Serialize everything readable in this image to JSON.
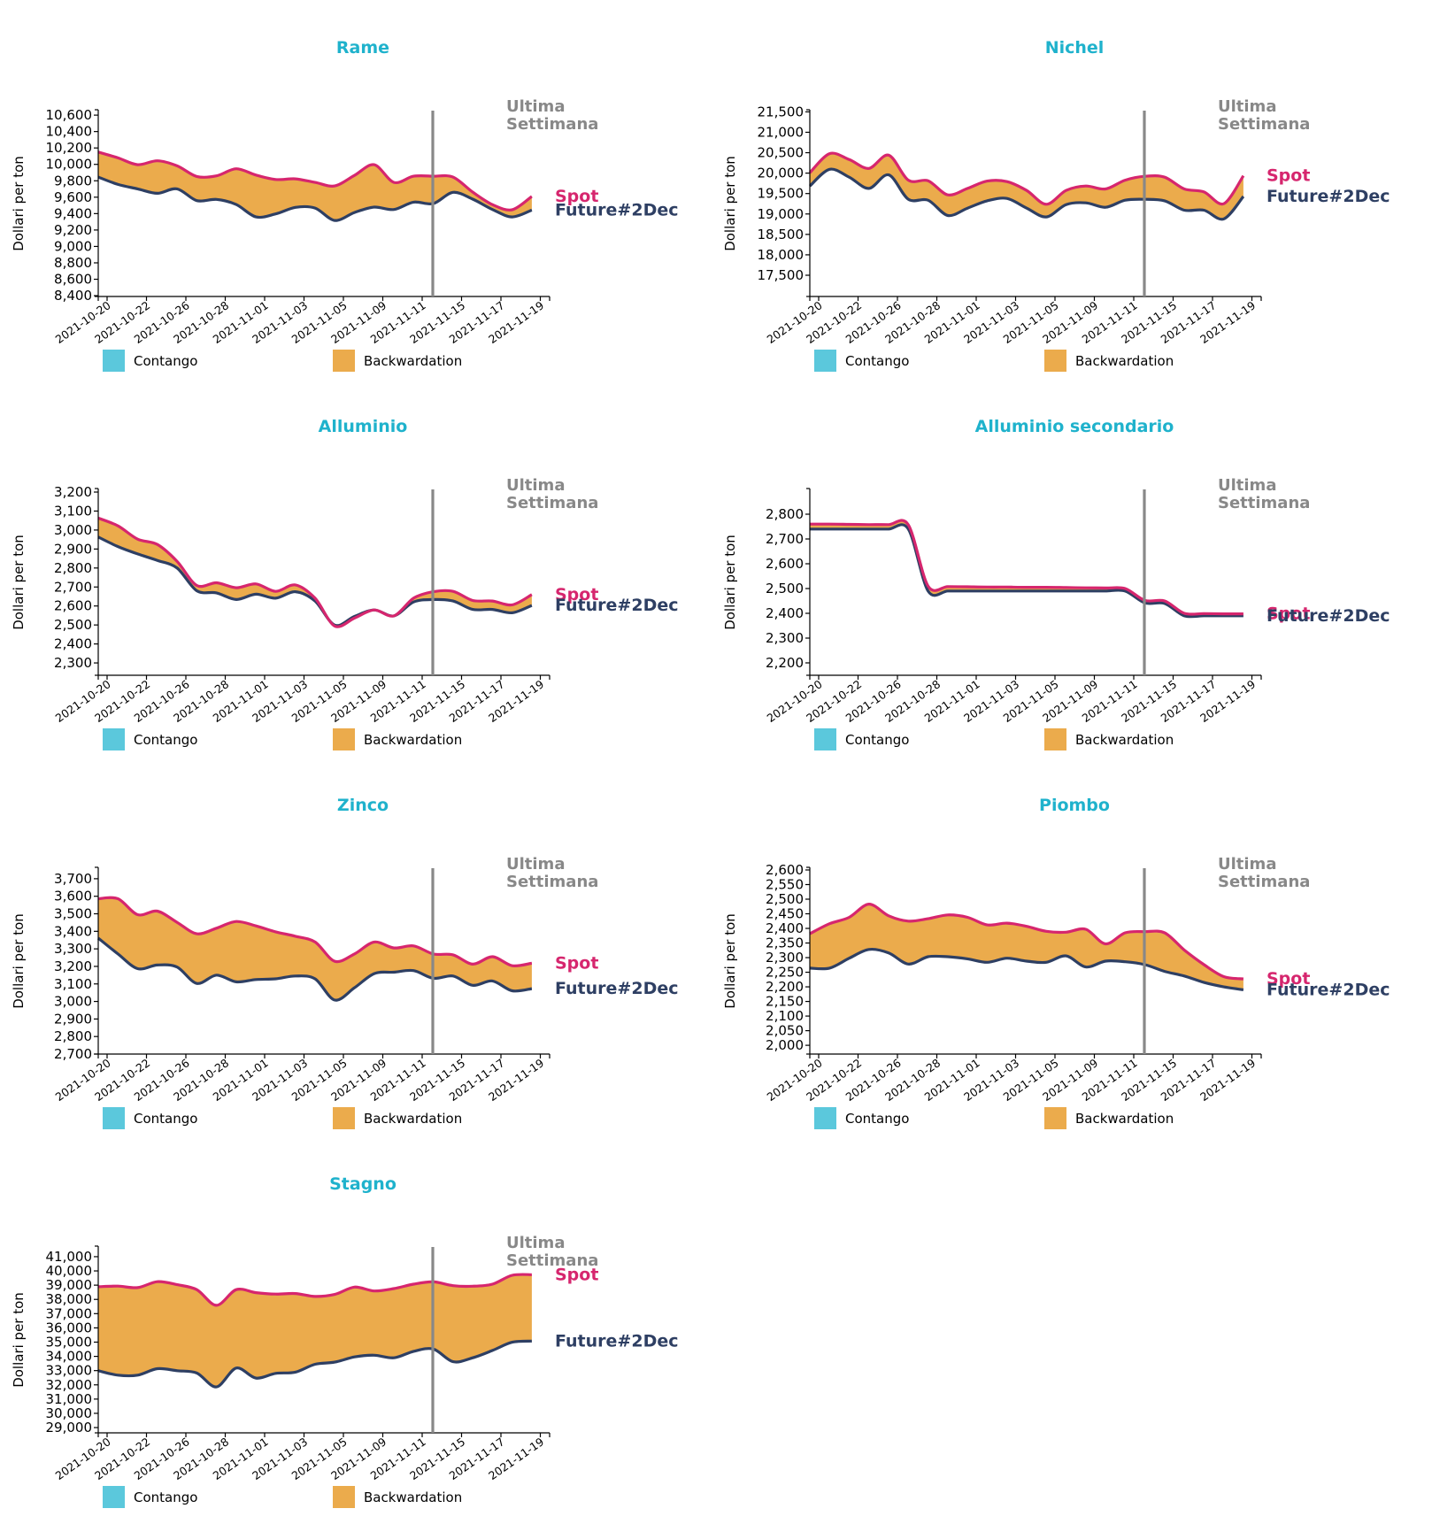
{
  "colors": {
    "title": "#1fb2cc",
    "spot": "#d6266e",
    "future": "#2e3f63",
    "contango": "#5bc8dc",
    "backwardation": "#ebab4c",
    "last_week_line": "#888888",
    "last_week_text": "#888888"
  },
  "common": {
    "ylabel": "Dollari per ton",
    "last_week_label_1": "Ultima",
    "last_week_label_2": "Settimana",
    "spot_label": "Spot",
    "future_label": "Future#2Dec",
    "legend": [
      {
        "label": "Contango",
        "color_key": "contango"
      },
      {
        "label": "Backwardation",
        "color_key": "backwardation"
      }
    ],
    "x_tick_labels": [
      "2021-10-20",
      "2021-10-22",
      "2021-10-26",
      "2021-10-28",
      "2021-11-01",
      "2021-11-03",
      "2021-11-05",
      "2021-11-09",
      "2021-11-11",
      "2021-11-15",
      "2021-11-17",
      "2021-11-19"
    ],
    "last_week_marker_after": "2021-11-11"
  },
  "chart_data": [
    {
      "type": "area",
      "title": "Rame",
      "xlabel": "",
      "ylabel": "Dollari per ton",
      "x": [
        "2021-10-19",
        "2021-10-20",
        "2021-10-21",
        "2021-10-22",
        "2021-10-25",
        "2021-10-26",
        "2021-10-27",
        "2021-10-28",
        "2021-10-29",
        "2021-11-01",
        "2021-11-02",
        "2021-11-03",
        "2021-11-04",
        "2021-11-05",
        "2021-11-08",
        "2021-11-09",
        "2021-11-10",
        "2021-11-11",
        "2021-11-12",
        "2021-11-15",
        "2021-11-16",
        "2021-11-17",
        "2021-11-18"
      ],
      "ylim": [
        8390,
        10655
      ],
      "yticks": [
        8400,
        8600,
        8800,
        9000,
        9200,
        9400,
        9600,
        9800,
        10000,
        10200,
        10400,
        10600
      ],
      "series": [
        {
          "name": "Spot",
          "values": [
            10150,
            10079,
            9996,
            10043,
            9982,
            9853,
            9860,
            9946,
            9870,
            9816,
            9823,
            9780,
            9737,
            9866,
            9996,
            9780,
            9856,
            9856,
            9845,
            9662,
            9510,
            9447,
            9610
          ]
        },
        {
          "name": "Future#2Dec",
          "values": [
            9845,
            9756,
            9702,
            9648,
            9702,
            9558,
            9573,
            9511,
            9360,
            9396,
            9476,
            9468,
            9317,
            9414,
            9479,
            9450,
            9540,
            9522,
            9659,
            9576,
            9450,
            9360,
            9443
          ]
        }
      ],
      "legend": [
        "Contango",
        "Backwardation"
      ],
      "annotations": [
        "Ultima Settimana"
      ]
    },
    {
      "type": "area",
      "title": "Nichel",
      "xlabel": "",
      "ylabel": "Dollari per ton",
      "x": [
        "2021-10-19",
        "2021-10-20",
        "2021-10-21",
        "2021-10-22",
        "2021-10-25",
        "2021-10-26",
        "2021-10-27",
        "2021-10-28",
        "2021-10-29",
        "2021-11-01",
        "2021-11-02",
        "2021-11-03",
        "2021-11-04",
        "2021-11-05",
        "2021-11-08",
        "2021-11-09",
        "2021-11-10",
        "2021-11-11",
        "2021-11-12",
        "2021-11-15",
        "2021-11-16",
        "2021-11-17",
        "2021-11-18"
      ],
      "ylim": [
        16980,
        21530
      ],
      "yticks": [
        17500,
        18000,
        18500,
        19000,
        19500,
        20000,
        20500,
        21000,
        21500
      ],
      "series": [
        {
          "name": "Spot",
          "values": [
            20008,
            20477,
            20332,
            20116,
            20440,
            19828,
            19813,
            19468,
            19626,
            19806,
            19792,
            19576,
            19237,
            19576,
            19684,
            19612,
            19828,
            19922,
            19900,
            19612,
            19539,
            19251,
            19935
          ]
        },
        {
          "name": "Future#2Dec",
          "values": [
            19684,
            20094,
            19900,
            19626,
            19958,
            19360,
            19337,
            18963,
            19143,
            19323,
            19381,
            19143,
            18927,
            19230,
            19273,
            19165,
            19337,
            19360,
            19323,
            19093,
            19093,
            18877,
            19431
          ]
        }
      ],
      "legend": [
        "Contango",
        "Backwardation"
      ],
      "annotations": [
        "Ultima Settimana"
      ]
    },
    {
      "type": "area",
      "title": "Alluminio",
      "xlabel": "",
      "ylabel": "Dollari per ton",
      "x": [
        "2021-10-19",
        "2021-10-20",
        "2021-10-21",
        "2021-10-22",
        "2021-10-25",
        "2021-10-26",
        "2021-10-27",
        "2021-10-28",
        "2021-10-29",
        "2021-11-01",
        "2021-11-02",
        "2021-11-03",
        "2021-11-04",
        "2021-11-05",
        "2021-11-08",
        "2021-11-09",
        "2021-11-10",
        "2021-11-11",
        "2021-11-12",
        "2021-11-15",
        "2021-11-16",
        "2021-11-17",
        "2021-11-18"
      ],
      "ylim": [
        2235,
        3214
      ],
      "yticks": [
        2300,
        2400,
        2500,
        2600,
        2700,
        2800,
        2900,
        3000,
        3100,
        3200
      ],
      "series": [
        {
          "name": "Spot",
          "values": [
            3063,
            3022,
            2952,
            2924,
            2835,
            2708,
            2722,
            2696,
            2716,
            2677,
            2711,
            2641,
            2494,
            2536,
            2579,
            2548,
            2641,
            2675,
            2677,
            2629,
            2626,
            2606,
            2660
          ]
        },
        {
          "name": "Future#2Dec",
          "values": [
            2963,
            2913,
            2874,
            2840,
            2800,
            2680,
            2669,
            2634,
            2662,
            2641,
            2675,
            2626,
            2499,
            2545,
            2579,
            2548,
            2621,
            2634,
            2626,
            2582,
            2582,
            2564,
            2603
          ]
        }
      ],
      "legend": [
        "Contango",
        "Backwardation"
      ],
      "annotations": [
        "Ultima Settimana"
      ]
    },
    {
      "type": "area",
      "title": "Alluminio secondario",
      "xlabel": "",
      "ylabel": "Dollari per ton",
      "x": [
        "2021-10-19",
        "2021-10-20",
        "2021-10-21",
        "2021-10-22",
        "2021-10-25",
        "2021-10-26",
        "2021-10-27",
        "2021-10-28",
        "2021-10-29",
        "2021-11-01",
        "2021-11-02",
        "2021-11-03",
        "2021-11-04",
        "2021-11-05",
        "2021-11-08",
        "2021-11-09",
        "2021-11-10",
        "2021-11-11",
        "2021-11-12",
        "2021-11-15",
        "2021-11-16",
        "2021-11-17",
        "2021-11-18"
      ],
      "ylim": [
        2150,
        2900
      ],
      "yticks": [
        2200,
        2300,
        2400,
        2500,
        2600,
        2700,
        2800
      ],
      "series": [
        {
          "name": "Spot",
          "values": [
            2760,
            2760,
            2759,
            2758,
            2758,
            2757,
            2510,
            2508,
            2507,
            2506,
            2506,
            2505,
            2505,
            2504,
            2503,
            2502,
            2500,
            2452,
            2450,
            2400,
            2399,
            2398,
            2398
          ]
        },
        {
          "name": "Future#2Dec",
          "values": [
            2740,
            2740,
            2740,
            2740,
            2740,
            2740,
            2490,
            2490,
            2490,
            2490,
            2490,
            2490,
            2490,
            2490,
            2490,
            2490,
            2490,
            2442,
            2440,
            2390,
            2390,
            2390,
            2390
          ]
        }
      ],
      "legend": [
        "Contango",
        "Backwardation"
      ],
      "annotations": [
        "Ultima Settimana"
      ]
    },
    {
      "type": "area",
      "title": "Zinco",
      "xlabel": "",
      "ylabel": "Dollari per ton",
      "x": [
        "2021-10-19",
        "2021-10-20",
        "2021-10-21",
        "2021-10-22",
        "2021-10-25",
        "2021-10-26",
        "2021-10-27",
        "2021-10-28",
        "2021-10-29",
        "2021-11-01",
        "2021-11-02",
        "2021-11-03",
        "2021-11-04",
        "2021-11-05",
        "2021-11-08",
        "2021-11-09",
        "2021-11-10",
        "2021-11-11",
        "2021-11-12",
        "2021-11-15",
        "2021-11-16",
        "2021-11-17",
        "2021-11-18"
      ],
      "ylim": [
        2700,
        3760
      ],
      "yticks": [
        2700,
        2800,
        2900,
        3000,
        3100,
        3200,
        3300,
        3400,
        3500,
        3600,
        3700
      ],
      "series": [
        {
          "name": "Spot",
          "values": [
            3586,
            3586,
            3495,
            3515,
            3451,
            3386,
            3418,
            3456,
            3431,
            3397,
            3372,
            3339,
            3229,
            3271,
            3339,
            3305,
            3317,
            3271,
            3266,
            3213,
            3255,
            3204,
            3218
          ]
        },
        {
          "name": "Future#2Dec",
          "values": [
            3361,
            3271,
            3187,
            3208,
            3196,
            3103,
            3150,
            3112,
            3125,
            3129,
            3145,
            3129,
            3008,
            3078,
            3159,
            3167,
            3176,
            3132,
            3145,
            3092,
            3117,
            3061,
            3073
          ]
        }
      ],
      "legend": [
        "Contango",
        "Backwardation"
      ],
      "annotations": [
        "Ultima Settimana"
      ]
    },
    {
      "type": "area",
      "title": "Piombo",
      "xlabel": "",
      "ylabel": "Dollari per ton",
      "x": [
        "2021-10-19",
        "2021-10-20",
        "2021-10-21",
        "2021-10-22",
        "2021-10-25",
        "2021-10-26",
        "2021-10-27",
        "2021-10-28",
        "2021-10-29",
        "2021-11-01",
        "2021-11-02",
        "2021-11-03",
        "2021-11-04",
        "2021-11-05",
        "2021-11-08",
        "2021-11-09",
        "2021-11-10",
        "2021-11-11",
        "2021-11-12",
        "2021-11-15",
        "2021-11-16",
        "2021-11-17",
        "2021-11-18"
      ],
      "ylim": [
        1970,
        2606
      ],
      "yticks": [
        2000,
        2050,
        2100,
        2150,
        2200,
        2250,
        2300,
        2350,
        2400,
        2450,
        2500,
        2550,
        2600
      ],
      "series": [
        {
          "name": "Spot",
          "values": [
            2382,
            2416,
            2438,
            2483,
            2443,
            2425,
            2433,
            2446,
            2438,
            2412,
            2418,
            2407,
            2390,
            2387,
            2397,
            2347,
            2385,
            2389,
            2385,
            2326,
            2276,
            2235,
            2227
          ]
        },
        {
          "name": "Future#2Dec",
          "values": [
            2264,
            2264,
            2298,
            2328,
            2316,
            2278,
            2303,
            2303,
            2296,
            2284,
            2298,
            2288,
            2284,
            2306,
            2268,
            2288,
            2286,
            2276,
            2253,
            2237,
            2215,
            2200,
            2190
          ]
        }
      ],
      "legend": [
        "Contango",
        "Backwardation"
      ],
      "annotations": [
        "Ultima Settimana"
      ]
    },
    {
      "type": "area",
      "title": "Stagno",
      "xlabel": "",
      "ylabel": "Dollari per ton",
      "x": [
        "2021-10-19",
        "2021-10-20",
        "2021-10-21",
        "2021-10-22",
        "2021-10-25",
        "2021-10-26",
        "2021-10-27",
        "2021-10-28",
        "2021-10-29",
        "2021-11-01",
        "2021-11-02",
        "2021-11-03",
        "2021-11-04",
        "2021-11-05",
        "2021-11-08",
        "2021-11-09",
        "2021-11-10",
        "2021-11-11",
        "2021-11-12",
        "2021-11-15",
        "2021-11-16",
        "2021-11-17",
        "2021-11-18"
      ],
      "ylim": [
        28630,
        41680
      ],
      "yticks": [
        29000,
        30000,
        31000,
        32000,
        33000,
        34000,
        35000,
        36000,
        37000,
        38000,
        39000,
        40000,
        41000
      ],
      "series": [
        {
          "name": "Spot",
          "values": [
            38890,
            38931,
            38828,
            39241,
            39034,
            38683,
            37586,
            38683,
            38476,
            38372,
            38414,
            38207,
            38352,
            38862,
            38593,
            38759,
            39069,
            39234,
            38966,
            38924,
            39069,
            39692,
            39734
          ]
        },
        {
          "name": "Future#2Dec",
          "values": [
            32993,
            32683,
            32683,
            33138,
            32993,
            32828,
            31855,
            33179,
            32476,
            32807,
            32890,
            33448,
            33593,
            33959,
            34083,
            33897,
            34352,
            34517,
            33628,
            33897,
            34414,
            34993,
            35076
          ]
        }
      ],
      "legend": [
        "Contango",
        "Backwardation"
      ],
      "annotations": [
        "Ultima Settimana"
      ]
    }
  ]
}
